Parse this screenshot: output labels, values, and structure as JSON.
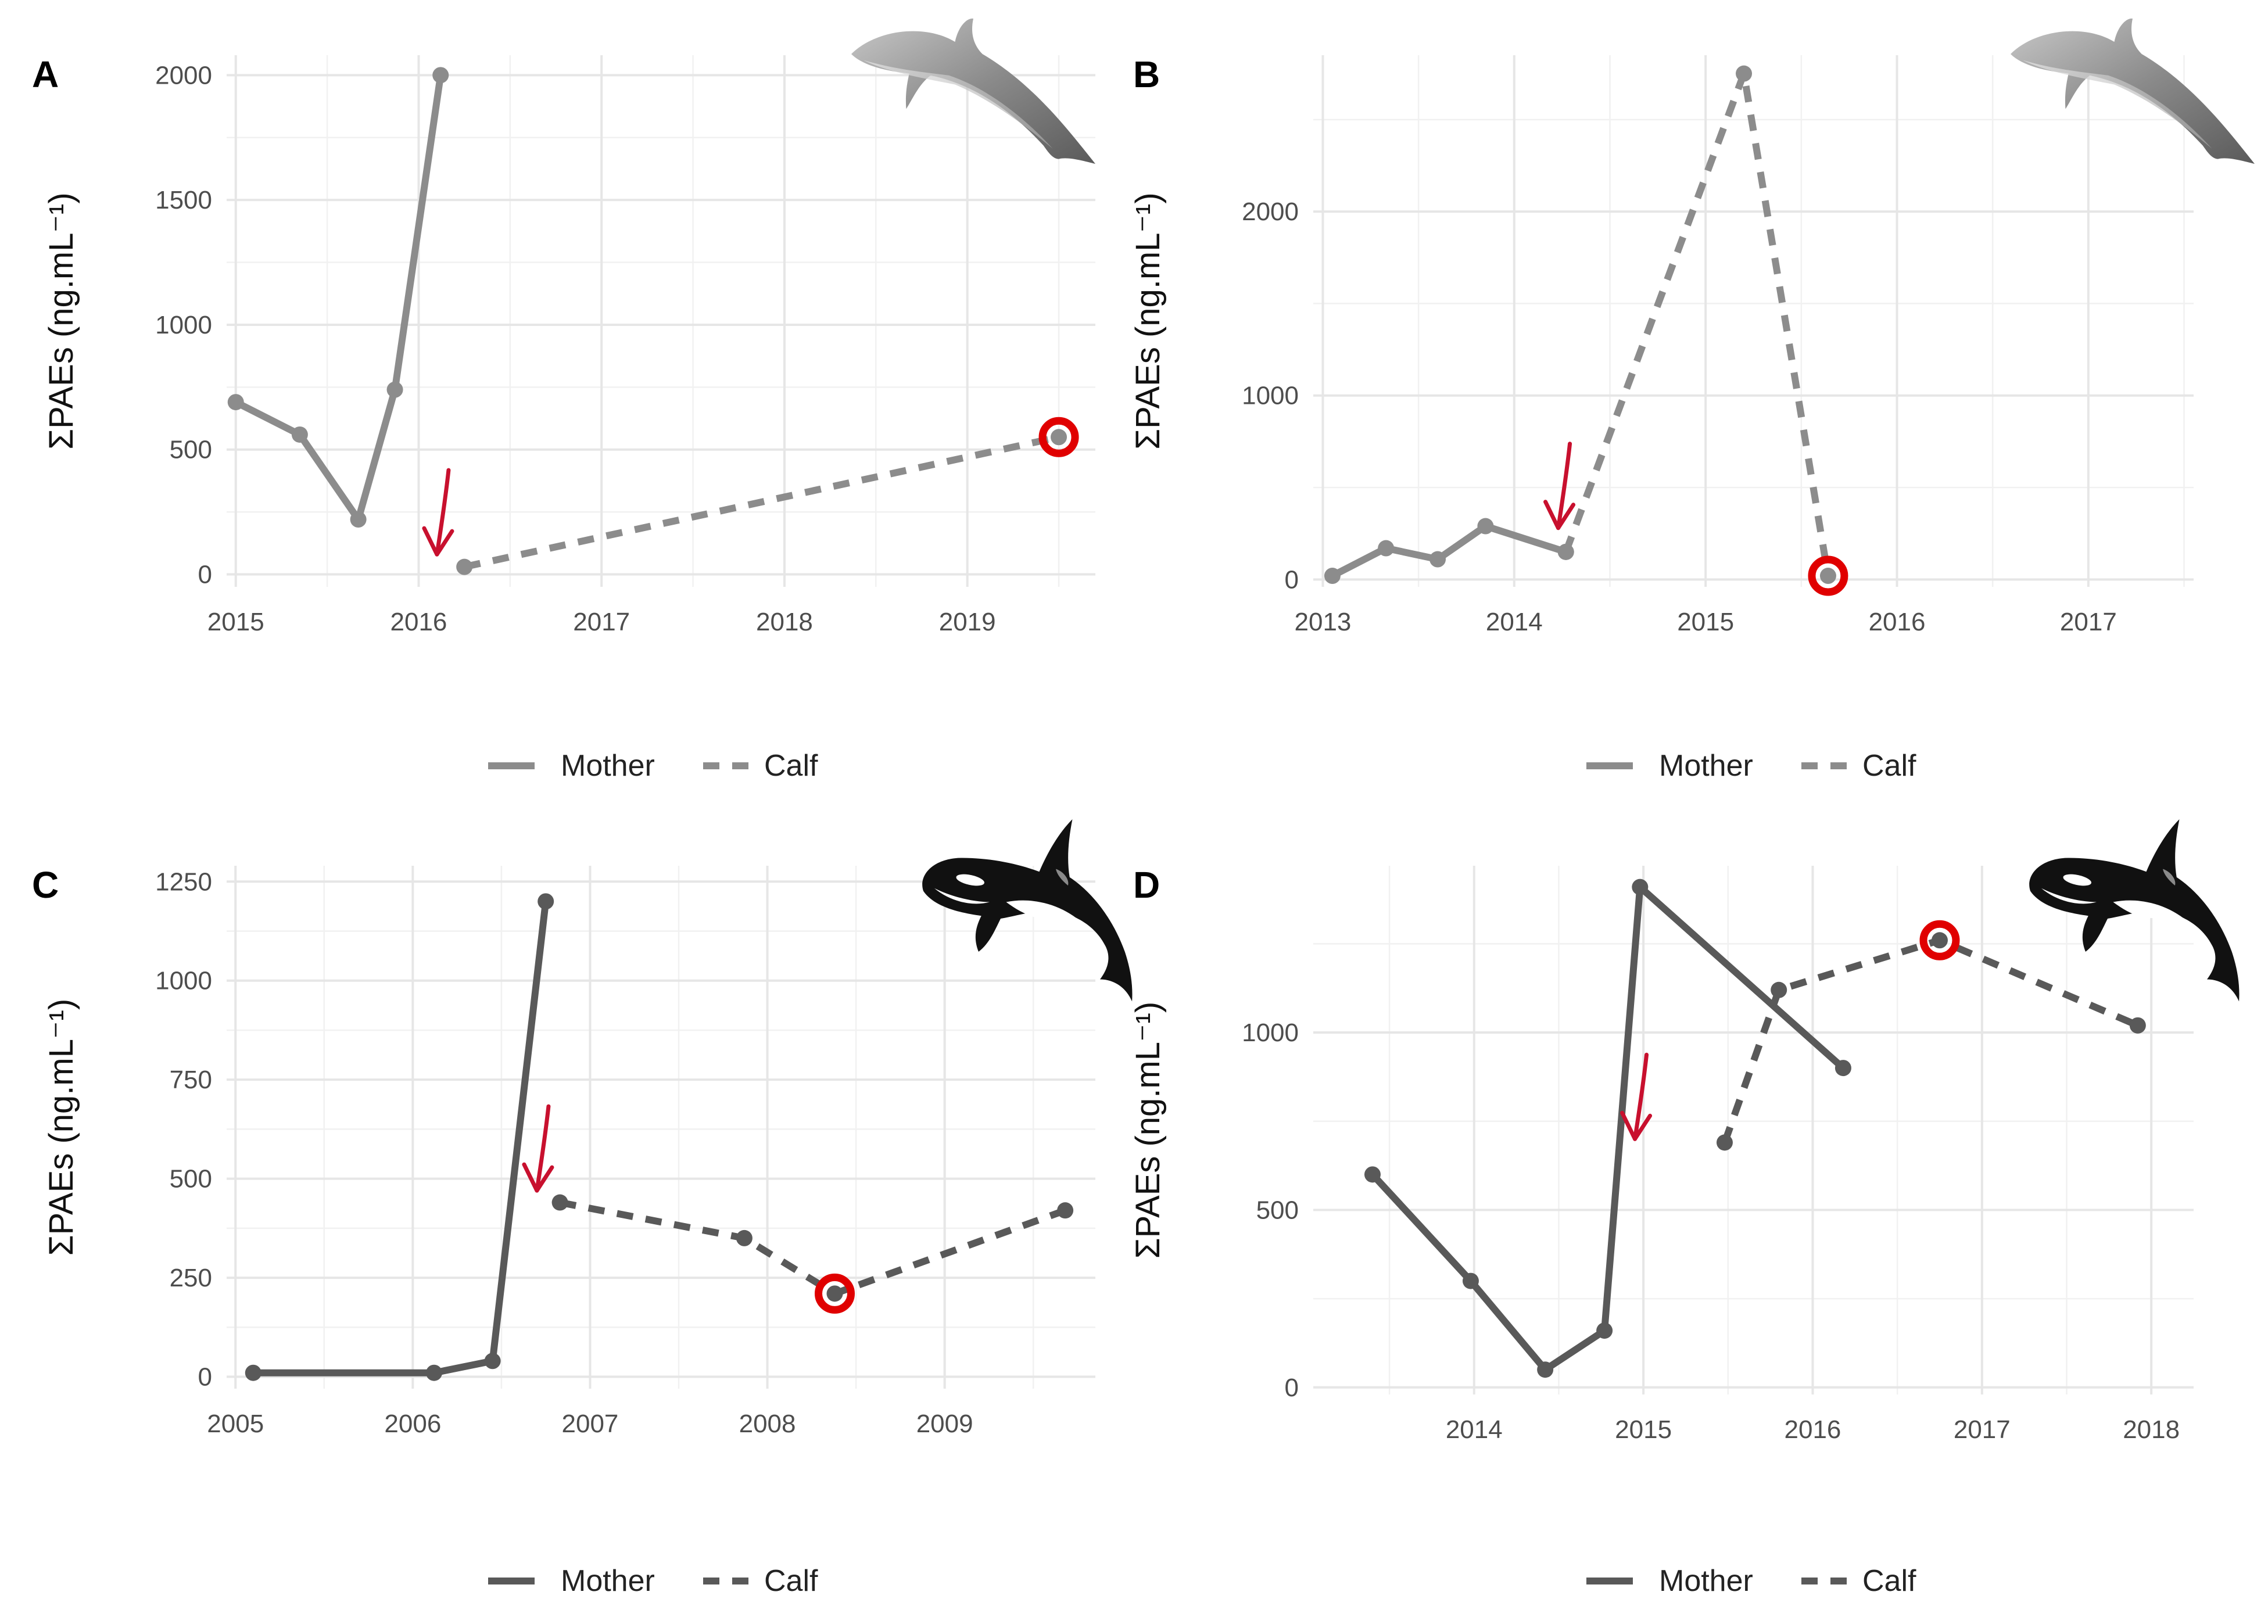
{
  "figure": {
    "panels": [
      "A",
      "B",
      "C",
      "D"
    ]
  },
  "chart_data": [
    {
      "panel": "A",
      "type": "line",
      "animal": "dolphin-icon",
      "xlabel": "",
      "ylabel": "ΣPAEs (ng.mL⁻¹)",
      "xlim": [
        2014.95,
        2019.7
      ],
      "ylim": [
        -50,
        2080
      ],
      "xticks": [
        2015,
        2016,
        2017,
        2018,
        2019
      ],
      "yticks": [
        0,
        500,
        1000,
        1500,
        2000
      ],
      "color": "#8c8c8c",
      "legend": [
        "Mother",
        "Calf"
      ],
      "series": [
        {
          "name": "Mother",
          "style": "solid",
          "x": [
            2015.0,
            2015.35,
            2015.67,
            2015.87,
            2016.12
          ],
          "y": [
            690,
            560,
            220,
            740,
            2000
          ]
        },
        {
          "name": "Calf",
          "style": "dashed",
          "x": [
            2016.25,
            2019.5
          ],
          "y": [
            30,
            550
          ]
        }
      ],
      "arrow_at": [
        2016.1,
        80
      ],
      "highlight": [
        2019.5,
        550
      ]
    },
    {
      "panel": "B",
      "type": "line",
      "animal": "dolphin-icon",
      "xlabel": "",
      "ylabel": "ΣPAEs (ng.mL⁻¹)",
      "xlim": [
        2012.95,
        2017.55
      ],
      "ylim": [
        -40,
        2850
      ],
      "xticks": [
        2013,
        2014,
        2015,
        2016,
        2017
      ],
      "yticks": [
        0,
        1000,
        2000
      ],
      "color": "#8c8c8c",
      "legend": [
        "Mother",
        "Calf"
      ],
      "series": [
        {
          "name": "Mother",
          "style": "solid",
          "x": [
            2013.05,
            2013.33,
            2013.6,
            2013.85,
            2014.27
          ],
          "y": [
            20,
            170,
            110,
            290,
            150
          ]
        },
        {
          "name": "Calf",
          "style": "dashed",
          "x": [
            2014.27,
            2015.2,
            2015.64
          ],
          "y": [
            150,
            2750,
            20
          ]
        }
      ],
      "arrow_at": [
        2014.23,
        280
      ],
      "highlight": [
        2015.64,
        20
      ]
    },
    {
      "panel": "C",
      "type": "line",
      "animal": "orca-icon",
      "xlabel": "",
      "ylabel": "ΣPAEs (ng.mL⁻¹)",
      "xlim": [
        2004.95,
        2009.85
      ],
      "ylim": [
        -30,
        1290
      ],
      "xticks": [
        2005,
        2006,
        2007,
        2008,
        2009
      ],
      "yticks": [
        0,
        250,
        500,
        750,
        1000,
        1250
      ],
      "color": "#595959",
      "legend": [
        "Mother",
        "Calf"
      ],
      "series": [
        {
          "name": "Mother",
          "style": "solid",
          "x": [
            2005.1,
            2006.12,
            2006.45,
            2006.75
          ],
          "y": [
            10,
            10,
            40,
            1200
          ]
        },
        {
          "name": "Calf",
          "style": "dashed",
          "x": [
            2006.83,
            2007.87,
            2008.38,
            2009.68
          ],
          "y": [
            440,
            350,
            210,
            420
          ]
        }
      ],
      "arrow_at": [
        2006.7,
        470
      ],
      "highlight": [
        2008.38,
        210
      ]
    },
    {
      "panel": "D",
      "type": "line",
      "animal": "orca-icon",
      "xlabel": "",
      "ylabel": "ΣPAEs (ng.mL⁻¹)",
      "xlim": [
        2013.05,
        2018.25
      ],
      "ylim": [
        -20,
        1470
      ],
      "xticks": [
        2014,
        2015,
        2016,
        2017,
        2018
      ],
      "yticks": [
        0,
        500,
        1000
      ],
      "color": "#595959",
      "legend": [
        "Mother",
        "Calf"
      ],
      "series": [
        {
          "name": "Mother",
          "style": "solid",
          "x": [
            2013.4,
            2013.98,
            2014.42,
            2014.77,
            2014.98,
            2016.18
          ],
          "y": [
            600,
            300,
            50,
            160,
            1410,
            900
          ]
        },
        {
          "name": "Calf",
          "style": "dashed",
          "x": [
            2015.48,
            2015.8,
            2016.75,
            2017.92
          ],
          "y": [
            690,
            1120,
            1260,
            1020
          ]
        }
      ],
      "arrow_at": [
        2014.95,
        700
      ],
      "highlight": [
        2016.75,
        1260
      ]
    }
  ]
}
